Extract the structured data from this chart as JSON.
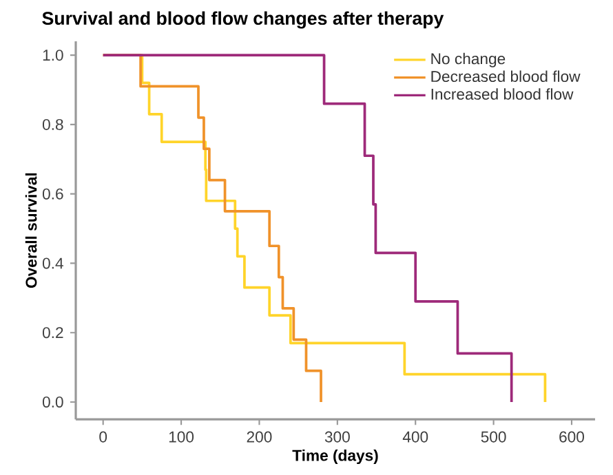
{
  "chart_data": {
    "type": "step",
    "title": "Survival and blood flow changes after therapy",
    "xlabel": "Time (days)",
    "ylabel": "Overall survival",
    "xlim": [
      -35,
      630
    ],
    "xticks": [
      0,
      100,
      200,
      300,
      400,
      500,
      600
    ],
    "ylim": [
      -0.05,
      1.04
    ],
    "yticks": [
      {
        "value": 0,
        "label": "0.0"
      },
      0.2,
      0.4,
      0.6,
      0.8,
      {
        "value": 1,
        "label": "1.0"
      }
    ],
    "grid": false,
    "legend": "top right",
    "marker": "none",
    "line_style": "solid",
    "series": [
      {
        "name": "No change",
        "color": "#ffd42a",
        "x": [
          0,
          50,
          59,
          75,
          131,
          132,
          169,
          172,
          181,
          213,
          240,
          386,
          566
        ],
        "values": [
          1,
          0.92,
          0.83,
          0.75,
          0.67,
          0.58,
          0.5,
          0.42,
          0.33,
          0.25,
          0.17,
          0.08,
          0
        ]
      },
      {
        "name": "Decreased blood flow",
        "color": "#f0922a",
        "x": [
          0,
          48,
          122,
          129,
          136,
          156,
          213,
          225,
          230,
          244,
          260,
          279
        ],
        "values": [
          1,
          0.91,
          0.82,
          0.73,
          0.64,
          0.55,
          0.45,
          0.36,
          0.27,
          0.18,
          0.09,
          0
        ]
      },
      {
        "name": "Increased blood flow",
        "color": "#9e2a7a",
        "x": [
          0,
          283,
          335,
          346,
          349,
          400,
          454,
          523
        ],
        "values": [
          1,
          0.86,
          0.71,
          0.57,
          0.43,
          0.29,
          0.14,
          0
        ]
      }
    ]
  }
}
